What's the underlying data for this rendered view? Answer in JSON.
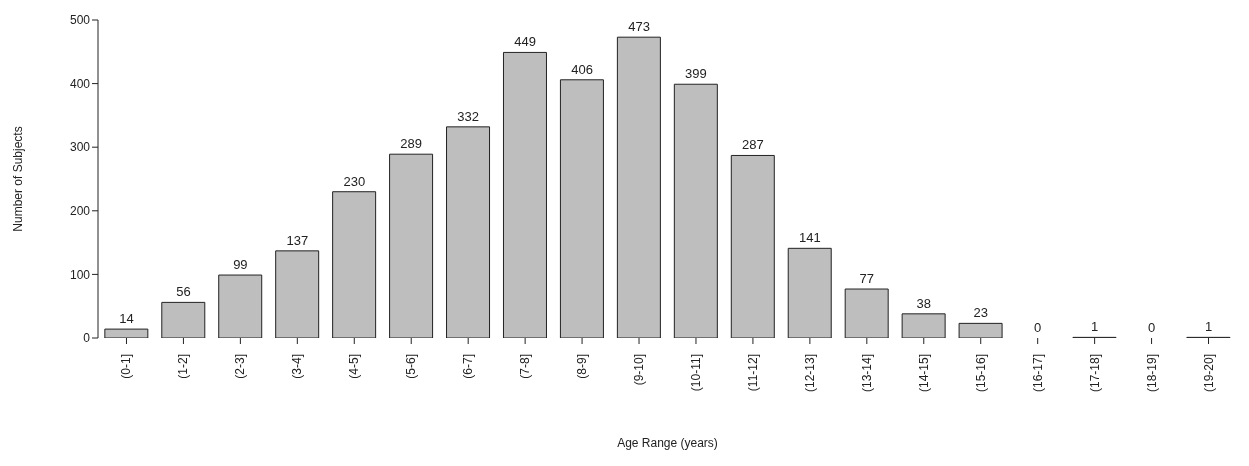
{
  "chart_data": {
    "type": "bar",
    "xlabel": "Age Range (years)",
    "ylabel": "Number of Subjects",
    "categories": [
      "(0-1]",
      "(1-2]",
      "(2-3]",
      "(3-4]",
      "(4-5]",
      "(5-6]",
      "(6-7]",
      "(7-8]",
      "(8-9]",
      "(9-10]",
      "(10-11]",
      "(11-12]",
      "(12-13]",
      "(13-14]",
      "(14-15]",
      "(15-16]",
      "(16-17]",
      "(17-18]",
      "(18-19]",
      "(19-20]"
    ],
    "values": [
      14,
      56,
      99,
      137,
      230,
      289,
      332,
      449,
      406,
      473,
      399,
      287,
      141,
      77,
      38,
      23,
      0,
      1,
      0,
      1
    ],
    "color": "#bebebe",
    "ylim": [
      0,
      500
    ],
    "yticks": [
      0,
      100,
      200,
      300,
      400,
      500
    ],
    "grid": false,
    "data_labels": true
  }
}
